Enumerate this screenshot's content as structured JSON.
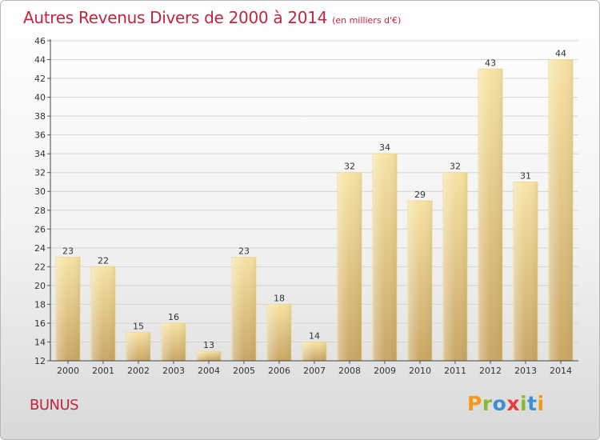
{
  "chart_data": {
    "type": "bar",
    "title": "Autres Revenus Divers de 2000 à 2014",
    "subtitle": "(en milliers d'€)",
    "categories": [
      "2000",
      "2001",
      "2002",
      "2003",
      "2004",
      "2005",
      "2006",
      "2007",
      "2008",
      "2009",
      "2010",
      "2011",
      "2012",
      "2013",
      "2014"
    ],
    "values": [
      23,
      22,
      15,
      16,
      13,
      23,
      18,
      14,
      32,
      34,
      29,
      32,
      43,
      31,
      44
    ],
    "ylim": [
      12,
      46
    ],
    "yticks": [
      12,
      14,
      16,
      18,
      20,
      22,
      24,
      26,
      28,
      30,
      32,
      34,
      36,
      38,
      40,
      42,
      44,
      46
    ],
    "grid": true,
    "colors": {
      "bar_light": "#f7e3a4",
      "bar_dark": "#c9a766",
      "title": "#c0253f"
    }
  },
  "footer": {
    "commune": "BUNUS",
    "logo": {
      "p": "P",
      "r": "r",
      "o": "o",
      "x": "x",
      "i": "i",
      "t": "t",
      "i2": "i"
    }
  }
}
